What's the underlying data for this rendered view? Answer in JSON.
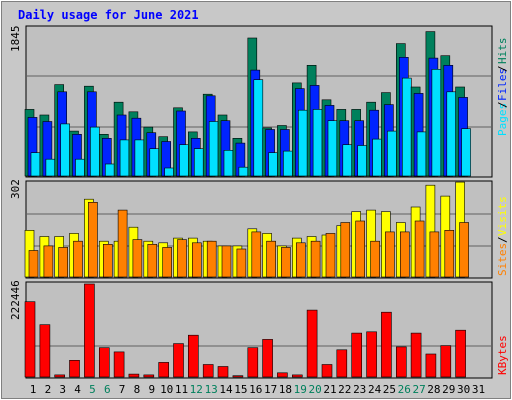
{
  "title": "Daily usage for June 2021",
  "colors": {
    "bg": "#c0c0c0",
    "hits": "#00805c",
    "files": "#0024ff",
    "pages": "#00e0ff",
    "visits": "#ffff00",
    "sites": "#ff8000",
    "kbytes": "#ff0000",
    "title": "#0000ff",
    "weekend": "#00805c"
  },
  "chart_data": [
    {
      "type": "bar",
      "panel": "hits-files-pages",
      "max_label": "1845",
      "ylim": [
        0,
        1845
      ],
      "categories": [
        "1",
        "2",
        "3",
        "4",
        "5",
        "6",
        "7",
        "8",
        "9",
        "10",
        "11",
        "12",
        "13",
        "14",
        "15",
        "16",
        "17",
        "18",
        "19",
        "20",
        "21",
        "22",
        "23",
        "24",
        "25",
        "26",
        "27",
        "28",
        "29",
        "30",
        "31"
      ],
      "series": [
        {
          "name": "Hits",
          "values": [
            830,
            760,
            1140,
            560,
            1120,
            520,
            920,
            800,
            610,
            490,
            850,
            550,
            1020,
            760,
            470,
            1720,
            600,
            630,
            1160,
            1380,
            950,
            830,
            830,
            920,
            1040,
            1650,
            1110,
            1800,
            1500,
            1110,
            0
          ]
        },
        {
          "name": "Files",
          "values": [
            730,
            680,
            1050,
            520,
            1050,
            470,
            760,
            720,
            540,
            430,
            810,
            470,
            1000,
            690,
            410,
            1320,
            580,
            580,
            1090,
            1130,
            880,
            690,
            690,
            820,
            890,
            1480,
            1030,
            1470,
            1380,
            980,
            0
          ]
        },
        {
          "name": "Pages",
          "values": [
            290,
            210,
            650,
            210,
            610,
            150,
            450,
            450,
            340,
            100,
            390,
            340,
            680,
            320,
            110,
            1200,
            290,
            310,
            820,
            830,
            690,
            390,
            380,
            460,
            560,
            1220,
            550,
            1330,
            1050,
            590,
            0
          ]
        }
      ],
      "labels": [
        "Pages",
        "Files",
        "Hits"
      ]
    },
    {
      "type": "bar",
      "panel": "visits-sites",
      "max_label": "302",
      "ylim": [
        0,
        302
      ],
      "categories": [
        "1",
        "2",
        "3",
        "4",
        "5",
        "6",
        "7",
        "8",
        "9",
        "10",
        "11",
        "12",
        "13",
        "14",
        "15",
        "16",
        "17",
        "18",
        "19",
        "20",
        "21",
        "22",
        "23",
        "24",
        "25",
        "26",
        "27",
        "28",
        "29",
        "30",
        "31"
      ],
      "series": [
        {
          "name": "Visits",
          "values": [
            150,
            130,
            130,
            140,
            250,
            115,
            115,
            160,
            115,
            110,
            125,
            125,
            115,
            100,
            100,
            155,
            140,
            100,
            125,
            130,
            135,
            165,
            210,
            215,
            210,
            175,
            225,
            295,
            260,
            305,
            0
          ]
        },
        {
          "name": "Sites",
          "values": [
            85,
            100,
            95,
            115,
            240,
            105,
            215,
            120,
            105,
            95,
            120,
            110,
            115,
            100,
            90,
            145,
            115,
            95,
            110,
            115,
            140,
            175,
            180,
            115,
            145,
            145,
            180,
            145,
            150,
            175,
            0
          ]
        }
      ],
      "labels": [
        "Sites",
        "Visits"
      ]
    },
    {
      "type": "bar",
      "panel": "kbytes",
      "max_label": "222446",
      "ylim": [
        0,
        222446
      ],
      "categories": [
        "1",
        "2",
        "3",
        "4",
        "5",
        "6",
        "7",
        "8",
        "9",
        "10",
        "11",
        "12",
        "13",
        "14",
        "15",
        "16",
        "17",
        "18",
        "19",
        "20",
        "21",
        "22",
        "23",
        "24",
        "25",
        "26",
        "27",
        "28",
        "29",
        "30",
        "31"
      ],
      "series": [
        {
          "name": "KBytes",
          "values": [
            180000,
            125000,
            5000,
            40000,
            222446,
            70000,
            60000,
            7000,
            5000,
            35000,
            80000,
            100000,
            30000,
            25000,
            3000,
            70000,
            90000,
            10000,
            5000,
            160000,
            30000,
            65000,
            105000,
            108000,
            155000,
            72000,
            105000,
            55000,
            75000,
            112000,
            0
          ]
        }
      ],
      "labels": [
        "KBytes"
      ]
    }
  ],
  "weekend_days": [
    5,
    6,
    12,
    13,
    19,
    20,
    26,
    27
  ]
}
